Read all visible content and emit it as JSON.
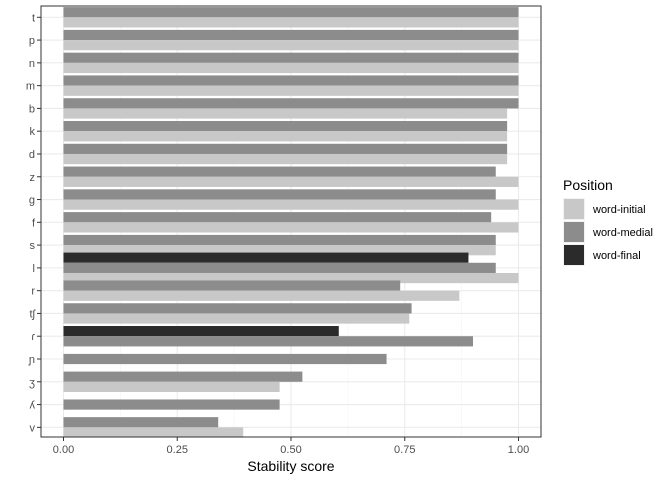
{
  "chart_data": {
    "type": "bar",
    "orientation": "horizontal",
    "xlabel": "Stability score",
    "ylabel": "",
    "xlim": [
      0,
      1
    ],
    "x_ticks": [
      "0.00",
      "0.25",
      "0.50",
      "0.75",
      "1.00"
    ],
    "grid": true,
    "legend_position": "right",
    "legend_title": "Position",
    "categories": [
      "t",
      "p",
      "n",
      "m",
      "b",
      "k",
      "d",
      "z",
      "g",
      "f",
      "s",
      "l",
      "r",
      "tʃ",
      "ɾ",
      "ɲ",
      "ʒ",
      "ʎ",
      "v"
    ],
    "series": [
      {
        "name": "word-initial",
        "color": "#c8c8c8",
        "values": [
          1.0,
          1.0,
          1.0,
          1.0,
          0.975,
          0.975,
          0.975,
          1.0,
          1.0,
          1.0,
          0.95,
          1.0,
          0.87,
          0.76,
          null,
          null,
          0.475,
          null,
          0.395
        ]
      },
      {
        "name": "word-medial",
        "color": "#8c8c8c",
        "values": [
          1.0,
          1.0,
          1.0,
          1.0,
          1.0,
          0.975,
          0.975,
          0.95,
          0.95,
          0.94,
          0.95,
          0.95,
          0.74,
          0.765,
          0.9,
          0.71,
          0.525,
          0.475,
          0.34
        ]
      },
      {
        "name": "word-final",
        "color": "#2b2b2b",
        "values": [
          null,
          null,
          null,
          null,
          null,
          null,
          null,
          null,
          null,
          null,
          null,
          0.89,
          null,
          null,
          0.605,
          null,
          null,
          null,
          null
        ]
      }
    ]
  }
}
